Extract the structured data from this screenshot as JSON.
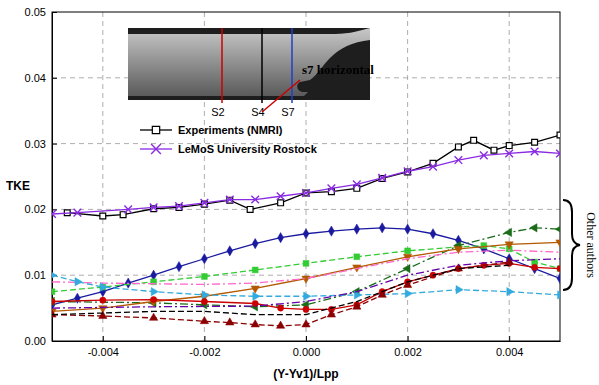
{
  "chart_data": {
    "type": "line",
    "xlabel": "(Y-Yv1)/Lpp",
    "ylabel": "TKE",
    "xlim": [
      -0.005,
      0.005
    ],
    "ylim": [
      0,
      0.05
    ],
    "xticks": [
      -0.004,
      -0.002,
      {
        "value": 0,
        "label": "0.000"
      },
      0.002,
      0.004
    ],
    "yticks": [
      {
        "value": 0,
        "label": "0.00"
      },
      0.01,
      0.02,
      0.03,
      0.04,
      0.05
    ],
    "grid": true,
    "legend": "upper left",
    "annotations": [
      {
        "text": "s7 horizontal"
      },
      {
        "text": "S2",
        "color": "#cc0000"
      },
      {
        "text": "S4",
        "color": "#000000"
      },
      {
        "text": "S7",
        "color": "#1f3fcc"
      },
      {
        "text": "Other authors"
      }
    ],
    "series": [
      {
        "name": "Experiments (NMRI)",
        "color": "#000000",
        "marker": "square-open",
        "line_style": "solid",
        "x": [
          -0.0047,
          -0.004,
          -0.0036,
          -0.003,
          -0.0025,
          -0.002,
          -0.0015,
          -0.0011,
          -0.0005,
          0.0,
          0.0005,
          0.001,
          0.0015,
          0.002,
          0.0025,
          0.003,
          0.0033,
          0.0037,
          0.004,
          0.0045,
          0.005
        ],
        "values": [
          0.0195,
          0.019,
          0.0192,
          0.0201,
          0.0203,
          0.0208,
          0.0214,
          0.02,
          0.021,
          0.0225,
          0.0227,
          0.0232,
          0.0247,
          0.0257,
          0.027,
          0.0295,
          0.0305,
          0.029,
          0.0297,
          0.0302,
          0.0313
        ]
      },
      {
        "name": "LeMoS  University Rostock",
        "color": "#8a2be2",
        "marker": "x",
        "line_style": "solid",
        "x": [
          -0.005,
          -0.0045,
          -0.0035,
          -0.003,
          -0.0025,
          -0.002,
          -0.0015,
          -0.001,
          -0.0005,
          0.0,
          0.0005,
          0.001,
          0.0015,
          0.002,
          0.0025,
          0.003,
          0.0035,
          0.004,
          0.0045,
          0.005
        ],
        "values": [
          0.0193,
          0.0195,
          0.02,
          0.0203,
          0.0205,
          0.021,
          0.0215,
          0.0215,
          0.022,
          0.0225,
          0.0232,
          0.0238,
          0.0248,
          0.0258,
          0.0265,
          0.0275,
          0.0282,
          0.0285,
          0.0288,
          0.0285
        ]
      },
      {
        "color": "#1a1aa0",
        "marker": "diamond",
        "line_style": "solid",
        "x": [
          -0.005,
          -0.0045,
          -0.004,
          -0.0035,
          -0.003,
          -0.0025,
          -0.002,
          -0.0015,
          -0.001,
          -0.0005,
          0.0,
          0.0005,
          0.001,
          0.0015,
          0.002,
          0.0025,
          0.003,
          0.0035,
          0.004,
          0.0045,
          0.005
        ],
        "values": [
          0.0055,
          0.0065,
          0.0075,
          0.0088,
          0.01,
          0.0113,
          0.0125,
          0.0137,
          0.0148,
          0.0157,
          0.0163,
          0.0167,
          0.017,
          0.0172,
          0.017,
          0.0163,
          0.0153,
          0.014,
          0.0125,
          0.011,
          0.0095
        ]
      },
      {
        "color": "#33cc33",
        "marker": "square",
        "line_style": "dashed",
        "x": [
          -0.005,
          -0.004,
          -0.003,
          -0.002,
          -0.001,
          0.0,
          0.001,
          0.002,
          0.003,
          0.0035,
          0.004,
          0.0045,
          0.005
        ],
        "values": [
          0.0075,
          0.0082,
          0.009,
          0.0098,
          0.0108,
          0.0118,
          0.0128,
          0.0137,
          0.0143,
          0.0145,
          0.014,
          0.012,
          0.011
        ]
      },
      {
        "color": "#1a6b1a",
        "marker": "triangle-left",
        "line_style": "dashdot",
        "x": [
          -0.005,
          -0.003,
          -0.002,
          -0.001,
          0.0,
          0.001,
          0.002,
          0.003,
          0.004,
          0.0045,
          0.005
        ],
        "values": [
          0.006,
          0.0058,
          0.0055,
          0.0052,
          0.0055,
          0.0075,
          0.011,
          0.0145,
          0.0165,
          0.0172,
          0.017
        ]
      },
      {
        "color": "#b35900",
        "marker": "triangle-down",
        "line_style": "solid",
        "x": [
          -0.005,
          -0.004,
          -0.003,
          -0.002,
          -0.001,
          0.0,
          0.001,
          0.002,
          0.003,
          0.004,
          0.005
        ],
        "values": [
          0.0045,
          0.005,
          0.006,
          0.0068,
          0.008,
          0.0095,
          0.0112,
          0.0128,
          0.014,
          0.0147,
          0.015
        ]
      },
      {
        "color": "#ff66cc",
        "marker": "none",
        "line_style": "dashdot",
        "x": [
          -0.005,
          -0.004,
          -0.003,
          -0.002,
          -0.001,
          0.0,
          0.001,
          0.002,
          0.003,
          0.004,
          0.005
        ],
        "values": [
          0.009,
          0.0088,
          0.0087,
          0.0086,
          0.0088,
          0.0095,
          0.011,
          0.0125,
          0.0135,
          0.0138,
          0.0135
        ]
      },
      {
        "color": "#33aadd",
        "marker": "triangle-right",
        "line_style": "dashed",
        "x": [
          -0.005,
          -0.0045,
          -0.004,
          -0.003,
          -0.002,
          -0.001,
          0.0,
          0.001,
          0.002,
          0.003,
          0.004,
          0.005
        ],
        "values": [
          0.01,
          0.009,
          0.0082,
          0.0075,
          0.007,
          0.0068,
          0.0068,
          0.007,
          0.0072,
          0.0078,
          0.0075,
          0.007
        ]
      },
      {
        "color": "#cc0000",
        "marker": "circle",
        "line_style": "solid",
        "x": [
          -0.005,
          -0.004,
          -0.003,
          -0.002,
          -0.001,
          -0.0005,
          0.0,
          0.0005,
          0.001,
          0.0015,
          0.002,
          0.0025,
          0.003,
          0.0035,
          0.004,
          0.0045,
          0.005
        ],
        "values": [
          0.006,
          0.0062,
          0.0063,
          0.006,
          0.0057,
          0.005,
          0.0048,
          0.0048,
          0.0055,
          0.0075,
          0.009,
          0.01,
          0.011,
          0.0115,
          0.0118,
          0.0112,
          0.011
        ]
      },
      {
        "color": "#8b0000",
        "marker": "triangle-up",
        "line_style": "dashed",
        "x": [
          -0.005,
          -0.004,
          -0.003,
          -0.002,
          -0.0015,
          -0.001,
          -0.0005,
          0.0,
          0.0005,
          0.001,
          0.0015,
          0.002,
          0.003,
          0.004
        ],
        "values": [
          0.004,
          0.0038,
          0.0035,
          0.003,
          0.0028,
          0.0025,
          0.0023,
          0.0025,
          0.004,
          0.0052,
          0.007,
          0.0085,
          0.011,
          0.012
        ]
      },
      {
        "color": "#000000",
        "marker": "none",
        "line_style": "dashed",
        "x": [
          -0.005,
          -0.003,
          -0.002,
          -0.001,
          0.0,
          0.001,
          0.002,
          0.003,
          0.004
        ],
        "values": [
          0.004,
          0.0045,
          0.0045,
          0.004,
          0.004,
          0.006,
          0.009,
          0.011,
          0.0115
        ]
      },
      {
        "color": "#6600aa",
        "marker": "none",
        "line_style": "dashdot",
        "x": [
          -0.005,
          -0.003,
          -0.001,
          0.0,
          0.001,
          0.002,
          0.003,
          0.004,
          0.005
        ],
        "values": [
          0.005,
          0.0052,
          0.0053,
          0.006,
          0.0075,
          0.01,
          0.0115,
          0.0122,
          0.0125
        ]
      }
    ]
  }
}
